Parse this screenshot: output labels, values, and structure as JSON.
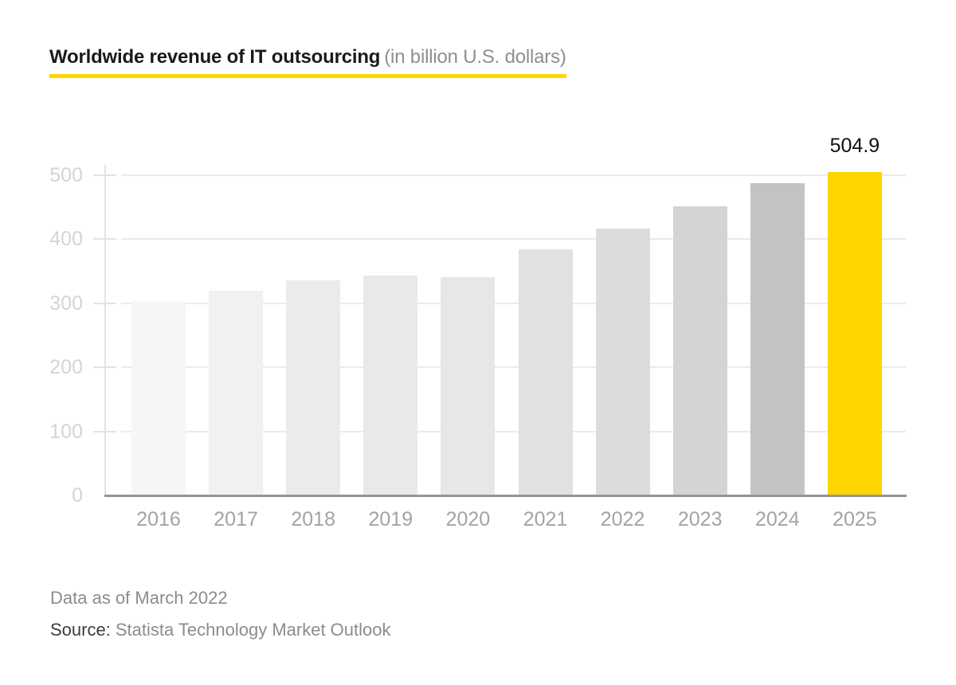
{
  "header": {
    "title": "Worldwide revenue of IT outsourcing",
    "subtitle": "(in billion U.S. dollars)"
  },
  "footer": {
    "note": "Data as of March 2022",
    "source_label": "Source:",
    "source_text": "Statista Technology Market Outlook"
  },
  "colors": {
    "accent_yellow": "#ffd500",
    "title_text": "#1a1a1a",
    "subtitle_text": "#8f8f8f",
    "y_axis_label": "#d4d4d4",
    "x_axis_label": "#a3a3a3",
    "gridline": "#ebebeb",
    "baseline": "#959595",
    "value_label": "#111111",
    "footer_text": "#8c8c8c",
    "source_label_text": "#3d3d3d"
  },
  "chart_data": {
    "type": "bar",
    "title": "Worldwide revenue of IT outsourcing",
    "units": "billion U.S. dollars",
    "categories": [
      "2016",
      "2017",
      "2018",
      "2019",
      "2020",
      "2021",
      "2022",
      "2023",
      "2024",
      "2025"
    ],
    "values": [
      303,
      320,
      336,
      343,
      341,
      384,
      417,
      451,
      488,
      504.9
    ],
    "bar_colors": [
      "#f6f6f6",
      "#f1f1f1",
      "#ebebeb",
      "#e9e9e9",
      "#e7e7e7",
      "#e1e1e1",
      "#dcdcdc",
      "#d4d4d4",
      "#c3c3c3",
      "#ffd500"
    ],
    "highlight_index": 9,
    "value_labels": [
      null,
      null,
      null,
      null,
      null,
      null,
      null,
      null,
      null,
      "504.9"
    ],
    "xlabel": "",
    "ylabel": "",
    "yticks": [
      0,
      100,
      200,
      300,
      400,
      500
    ],
    "ylim": [
      0,
      550
    ],
    "grid": "horizontal",
    "legend": "none"
  }
}
